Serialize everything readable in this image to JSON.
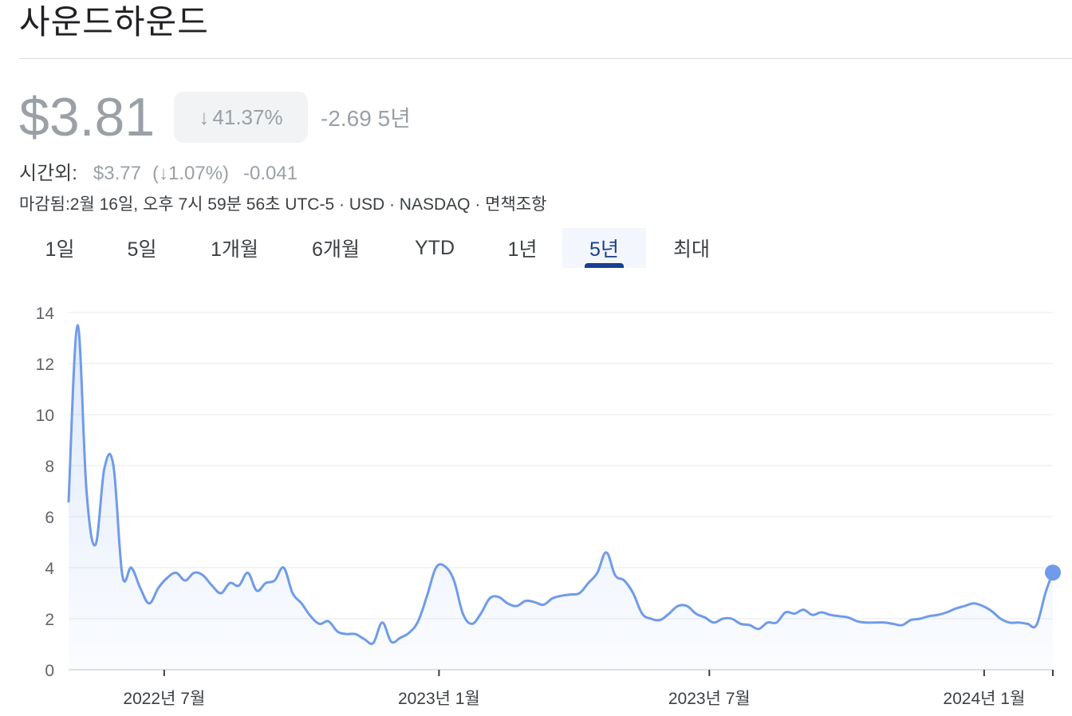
{
  "header": {
    "title": "사운드하운드"
  },
  "quote": {
    "price": "$3.81",
    "change_arrow": "↓",
    "change_pct": "41.37%",
    "change_abs": "-2.69 5년",
    "after_hours_label": "시간외:",
    "after_hours_price": "$3.77",
    "after_hours_pct": "(↓1.07%)",
    "after_hours_abs": "-0.041",
    "meta": "마감됨:2월 16일, 오후 7시 59분 56초 UTC-5 · USD · NASDAQ · 면책조항"
  },
  "tabs": [
    {
      "label": "1일",
      "active": false
    },
    {
      "label": "5일",
      "active": false
    },
    {
      "label": "1개월",
      "active": false
    },
    {
      "label": "6개월",
      "active": false
    },
    {
      "label": "YTD",
      "active": false
    },
    {
      "label": "1년",
      "active": false
    },
    {
      "label": "5년",
      "active": true
    },
    {
      "label": "최대",
      "active": false
    }
  ],
  "colors": {
    "line": "#6f9be9",
    "active_tab": "#1a3f8f",
    "price": "#9aa0a6"
  },
  "chart_data": {
    "type": "area",
    "ylim": [
      0,
      14
    ],
    "yticks": [
      0,
      2,
      4,
      6,
      8,
      10,
      12,
      14
    ],
    "xticks": [
      {
        "label": "2022년 7월",
        "x": "2022-07-01"
      },
      {
        "label": "2023년 1월",
        "x": "2023-01-01"
      },
      {
        "label": "2023년 7월",
        "x": "2023-07-01"
      },
      {
        "label": "2024년 1월",
        "x": "2024-01-01"
      }
    ],
    "x": [
      "2022-04-28",
      "2022-05-04",
      "2022-05-10",
      "2022-05-16",
      "2022-05-22",
      "2022-05-28",
      "2022-06-03",
      "2022-06-09",
      "2022-06-15",
      "2022-06-21",
      "2022-06-27",
      "2022-07-03",
      "2022-07-09",
      "2022-07-15",
      "2022-07-21",
      "2022-07-27",
      "2022-08-02",
      "2022-08-08",
      "2022-08-14",
      "2022-08-20",
      "2022-08-26",
      "2022-09-01",
      "2022-09-07",
      "2022-09-13",
      "2022-09-19",
      "2022-09-25",
      "2022-10-01",
      "2022-10-07",
      "2022-10-13",
      "2022-10-19",
      "2022-10-25",
      "2022-10-31",
      "2022-11-06",
      "2022-11-12",
      "2022-11-18",
      "2022-11-24",
      "2022-11-30",
      "2022-12-06",
      "2022-12-12",
      "2022-12-18",
      "2022-12-24",
      "2022-12-30",
      "2023-01-05",
      "2023-01-11",
      "2023-01-17",
      "2023-01-23",
      "2023-01-29",
      "2023-02-04",
      "2023-02-10",
      "2023-02-16",
      "2023-02-22",
      "2023-02-28",
      "2023-03-06",
      "2023-03-12",
      "2023-03-18",
      "2023-03-24",
      "2023-03-30",
      "2023-04-05",
      "2023-04-11",
      "2023-04-17",
      "2023-04-23",
      "2023-04-29",
      "2023-05-05",
      "2023-05-11",
      "2023-05-17",
      "2023-05-23",
      "2023-05-29",
      "2023-06-04",
      "2023-06-10",
      "2023-06-16",
      "2023-06-22",
      "2023-06-28",
      "2023-07-04",
      "2023-07-10",
      "2023-07-16",
      "2023-07-22",
      "2023-07-28",
      "2023-08-03",
      "2023-08-09",
      "2023-08-15",
      "2023-08-21",
      "2023-08-27",
      "2023-09-02",
      "2023-09-08",
      "2023-09-14",
      "2023-09-20",
      "2023-09-26",
      "2023-10-02",
      "2023-10-08",
      "2023-10-14",
      "2023-10-20",
      "2023-10-26",
      "2023-11-01",
      "2023-11-07",
      "2023-11-13",
      "2023-11-19",
      "2023-11-25",
      "2023-12-01",
      "2023-12-07",
      "2023-12-13",
      "2023-12-19",
      "2023-12-25",
      "2023-12-31",
      "2024-01-06",
      "2024-01-12",
      "2024-01-18",
      "2024-01-24",
      "2024-01-30",
      "2024-02-05",
      "2024-02-11",
      "2024-02-16"
    ],
    "series": [
      {
        "values": [
          6.6,
          13.5,
          7.0,
          4.9,
          7.9,
          8.0,
          3.7,
          4.0,
          3.2,
          2.6,
          3.2,
          3.6,
          3.8,
          3.5,
          3.8,
          3.7,
          3.3,
          3.0,
          3.4,
          3.3,
          3.8,
          3.1,
          3.4,
          3.5,
          4.0,
          3.0,
          2.6,
          2.1,
          1.8,
          1.9,
          1.5,
          1.4,
          1.4,
          1.2,
          1.05,
          1.85,
          1.1,
          1.25,
          1.45,
          1.9,
          2.9,
          4.0,
          4.05,
          3.5,
          2.2,
          1.8,
          2.2,
          2.8,
          2.85,
          2.6,
          2.5,
          2.7,
          2.65,
          2.55,
          2.8,
          2.9,
          2.95,
          3.0,
          3.4,
          3.8,
          4.6,
          3.7,
          3.5,
          3.0,
          2.2,
          2.0,
          1.95,
          2.2,
          2.5,
          2.5,
          2.2,
          2.05,
          1.85,
          2.0,
          2.0,
          1.8,
          1.75,
          1.6,
          1.85,
          1.85,
          2.25,
          2.2,
          2.35,
          2.15,
          2.25,
          2.15,
          2.1,
          2.05,
          1.9,
          1.85,
          1.85,
          1.85,
          1.8,
          1.75,
          1.95,
          2.0,
          2.1,
          2.15,
          2.25,
          2.4,
          2.5,
          2.6,
          2.5,
          2.3,
          2.0,
          1.85,
          1.85,
          1.8,
          1.75,
          3.0,
          3.81
        ]
      }
    ]
  }
}
